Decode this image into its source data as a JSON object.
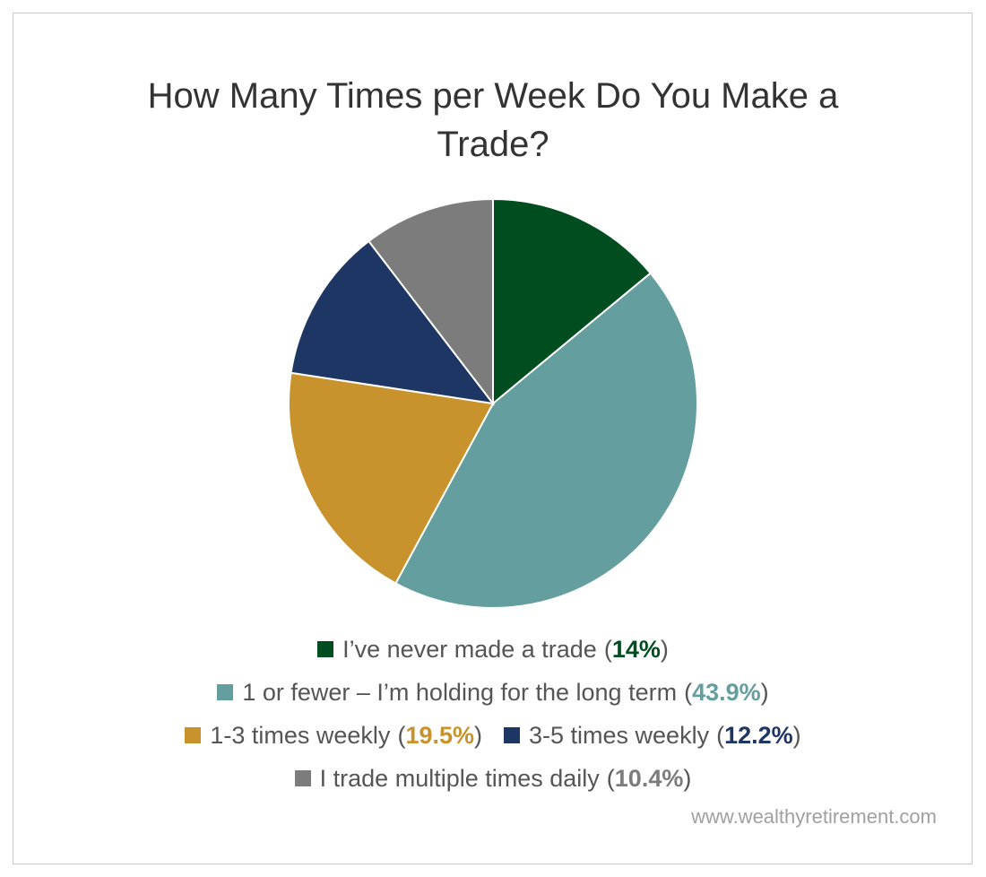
{
  "chart_data": {
    "type": "pie",
    "title": "How Many Times per Week Do You Make a Trade?",
    "categories": [
      "I’ve never made a trade",
      "1 or fewer – I’m holding for the long term",
      "1-3 times weekly",
      "3-5 times weekly",
      "I trade multiple times daily"
    ],
    "values": [
      14,
      43.9,
      19.5,
      12.2,
      10.4
    ],
    "value_labels": [
      "14%",
      "43.9%",
      "19.5%",
      "12.2%",
      "10.4%"
    ],
    "colors": [
      "#004d20",
      "#659e9e",
      "#c8922c",
      "#1e3664",
      "#7c7c7c"
    ],
    "label_open": "(",
    "label_close": ")",
    "source": "www.wealthyretirement.com"
  }
}
